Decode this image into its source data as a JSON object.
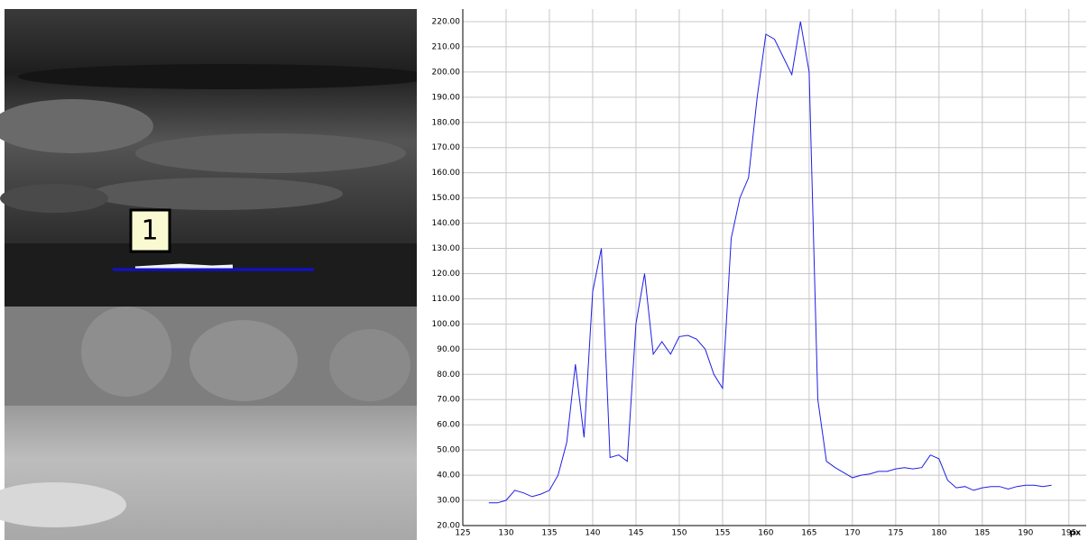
{
  "chart_data": {
    "type": "line",
    "annotation": "1",
    "x_label": "px",
    "x": [
      128,
      129,
      130,
      131,
      132,
      133,
      134,
      135,
      136,
      137,
      138,
      139,
      140,
      141,
      142,
      143,
      144,
      145,
      146,
      147,
      148,
      149,
      150,
      151,
      152,
      153,
      154,
      155,
      156,
      157,
      158,
      159,
      160,
      161,
      162,
      163,
      164,
      165,
      166,
      167,
      168,
      169,
      170,
      171,
      172,
      173,
      174,
      175,
      176,
      177,
      178,
      179,
      180,
      181,
      182,
      183,
      184,
      185,
      186,
      187,
      188,
      189,
      190,
      191,
      192,
      193
    ],
    "values": [
      29,
      29,
      30,
      34,
      33,
      31.5,
      32.5,
      34,
      40,
      53,
      84,
      55,
      113,
      130,
      47,
      48,
      45.5,
      100,
      120,
      88,
      93,
      88,
      95,
      95.5,
      94,
      90,
      80,
      74.5,
      134,
      150,
      158,
      190,
      215,
      213,
      206,
      199,
      220,
      200,
      70,
      45.5,
      43,
      41,
      39,
      40,
      40.5,
      41.5,
      41.5,
      42.5,
      43,
      42.5,
      43,
      48,
      46.5,
      38,
      35,
      35.5,
      34,
      35,
      35.5,
      35.5,
      34.5,
      35.5,
      36,
      36,
      35.5,
      36
    ],
    "color": "#1f1fe6",
    "xlim": [
      125,
      197
    ],
    "ylim": [
      20,
      225
    ],
    "xticks": [
      125,
      130,
      135,
      140,
      145,
      150,
      155,
      160,
      165,
      170,
      175,
      180,
      185,
      190,
      195
    ],
    "yticks": [
      {
        "value": 20,
        "label": "20.00"
      },
      {
        "value": 30,
        "label": "30.00"
      },
      {
        "value": 40,
        "label": "40.00"
      },
      {
        "value": 50,
        "label": "50.00"
      },
      {
        "value": 60,
        "label": "60.00"
      },
      {
        "value": 70,
        "label": "70.00"
      },
      {
        "value": 80,
        "label": "80.00"
      },
      {
        "value": 90,
        "label": "90.00"
      },
      {
        "value": 100,
        "label": "100.00"
      },
      {
        "value": 110,
        "label": "110.00"
      },
      {
        "value": 120,
        "label": "120.00"
      },
      {
        "value": 130,
        "label": "130.00"
      },
      {
        "value": 140,
        "label": "140.00"
      },
      {
        "value": 150,
        "label": "150.00"
      },
      {
        "value": 160,
        "label": "160.00"
      },
      {
        "value": 170,
        "label": "170.00"
      },
      {
        "value": 180,
        "label": "180.00"
      },
      {
        "value": 190,
        "label": "190.00"
      },
      {
        "value": 200,
        "label": "200.00"
      },
      {
        "value": 210,
        "label": "210.00"
      },
      {
        "value": 220,
        "label": "220.00"
      }
    ],
    "grid": true
  }
}
